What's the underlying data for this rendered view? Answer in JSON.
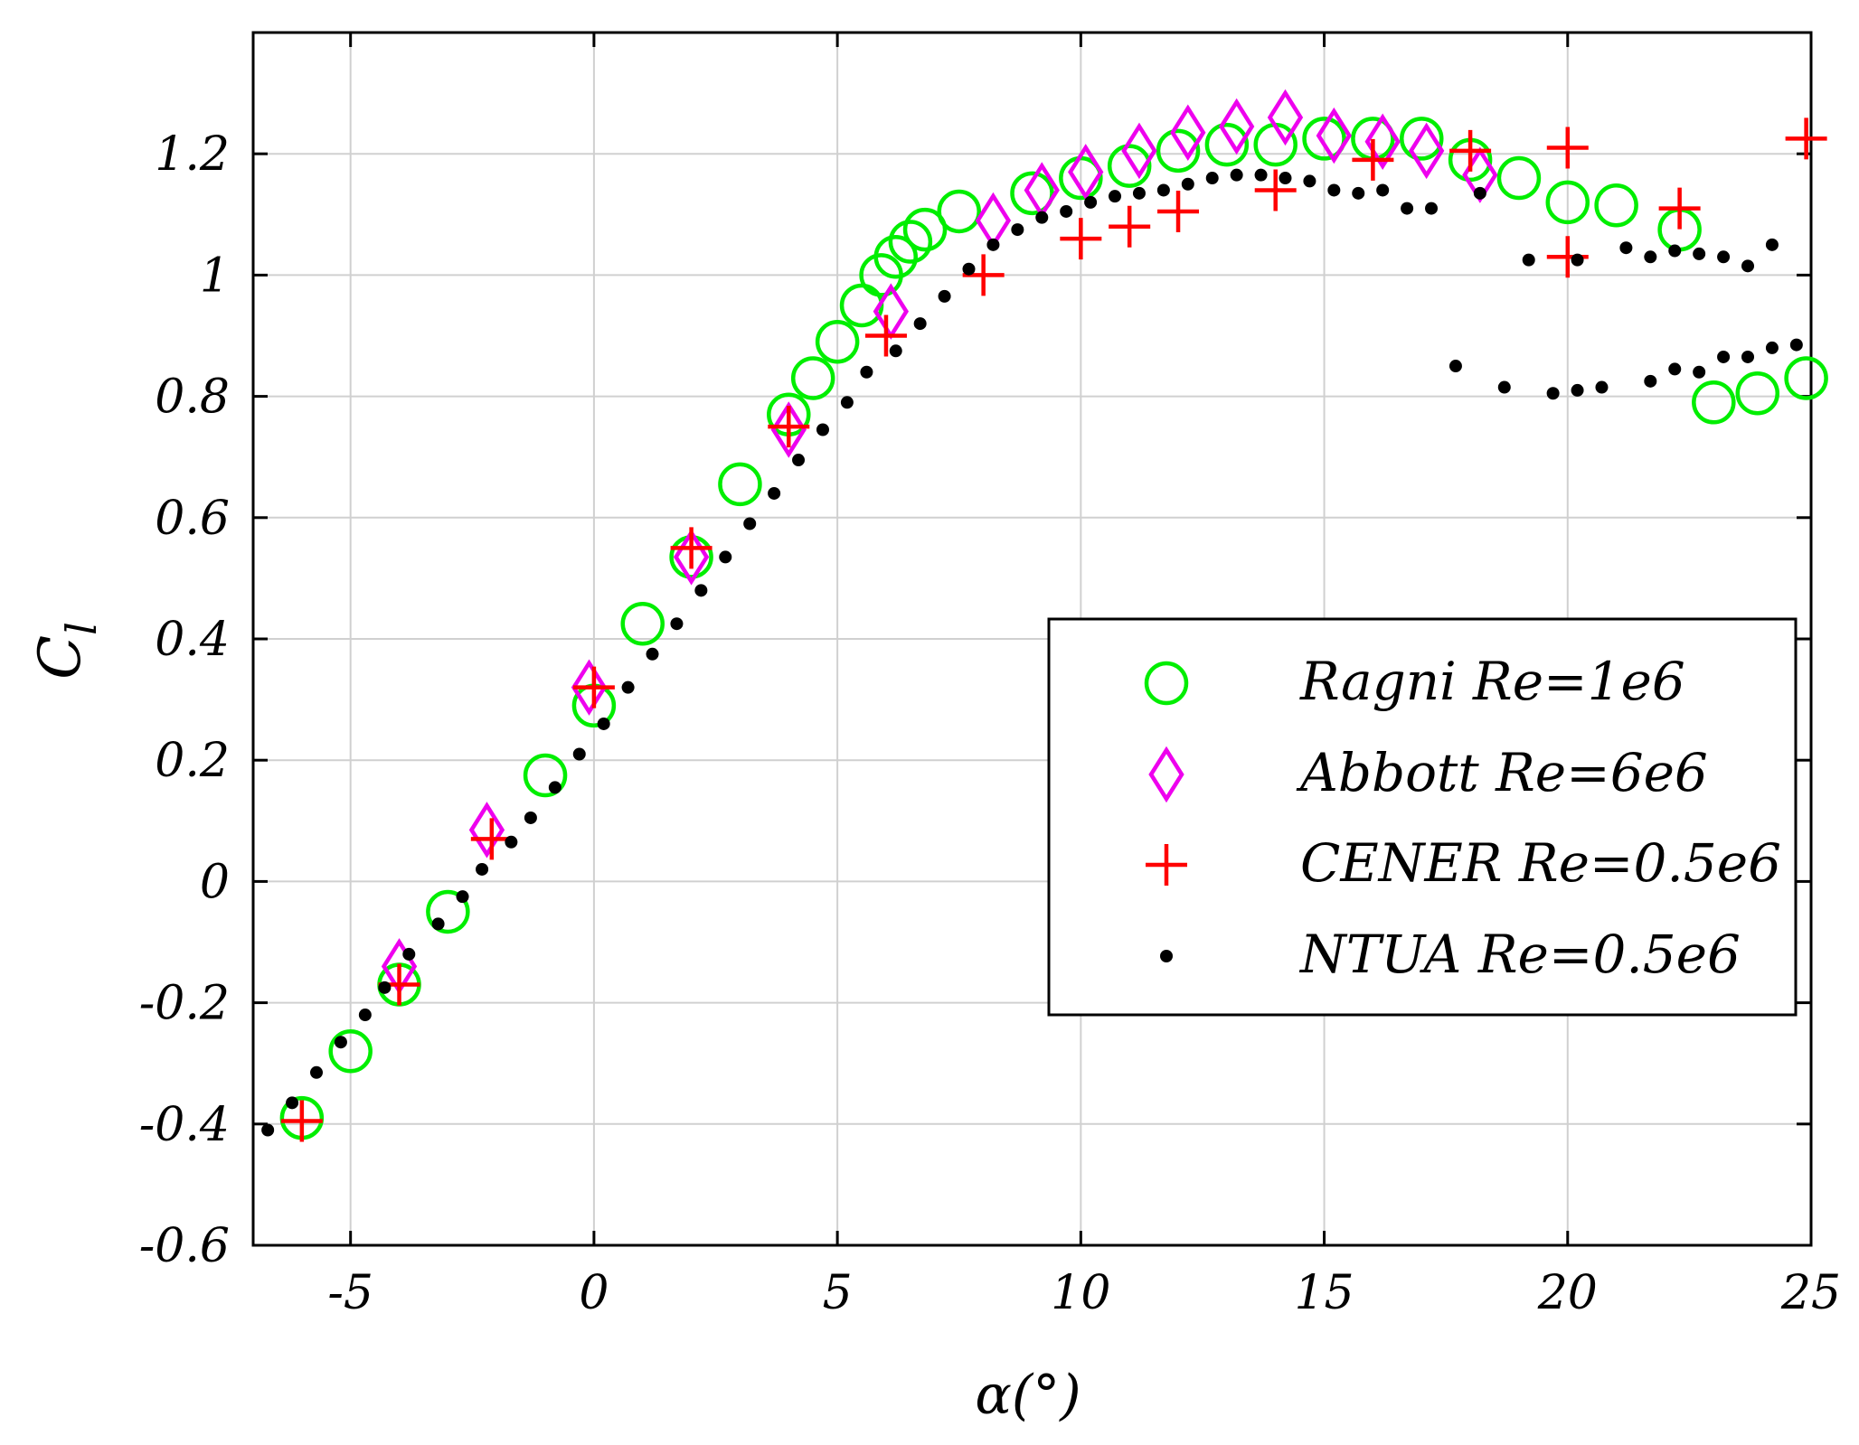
{
  "chart_data": {
    "type": "scatter",
    "xlabel": "α(°)",
    "ylabel_main": "C",
    "ylabel_sub": "l",
    "xlim": [
      -7,
      25
    ],
    "ylim": [
      -0.6,
      1.4
    ],
    "xticks": [
      -5,
      0,
      5,
      10,
      15,
      20,
      25
    ],
    "yticks": [
      -0.6,
      -0.4,
      -0.2,
      0,
      0.2,
      0.4,
      0.6,
      0.8,
      1,
      1.2
    ],
    "xtick_labels": [
      "-5",
      "0",
      "5",
      "10",
      "15",
      "20",
      "25"
    ],
    "ytick_labels": [
      "-0.6",
      "-0.4",
      "-0.2",
      "0",
      "0.2",
      "0.4",
      "0.6",
      "0.8",
      "1",
      "1.2"
    ],
    "grid": true,
    "legend_position": "center-right",
    "colors": {
      "ragni": "#00ee00",
      "abbott": "#ee00ee",
      "cener": "#ff0000",
      "ntua": "#000000",
      "grid": "#d0d0d0",
      "axis": "#000000"
    },
    "series": [
      {
        "name": "Ragni Re=1e6",
        "marker": "circle",
        "points": [
          [
            -6,
            -0.39
          ],
          [
            -5,
            -0.28
          ],
          [
            -4,
            -0.17
          ],
          [
            -3,
            -0.05
          ],
          [
            -1,
            0.175
          ],
          [
            0,
            0.29
          ],
          [
            1,
            0.425
          ],
          [
            2,
            0.535
          ],
          [
            3,
            0.655
          ],
          [
            4,
            0.77
          ],
          [
            4.5,
            0.83
          ],
          [
            5,
            0.89
          ],
          [
            5.5,
            0.95
          ],
          [
            5.9,
            1.0
          ],
          [
            6.2,
            1.03
          ],
          [
            6.5,
            1.055
          ],
          [
            6.8,
            1.075
          ],
          [
            7.5,
            1.105
          ],
          [
            9,
            1.135
          ],
          [
            10,
            1.16
          ],
          [
            11,
            1.18
          ],
          [
            12,
            1.205
          ],
          [
            13,
            1.215
          ],
          [
            14,
            1.215
          ],
          [
            15,
            1.225
          ],
          [
            16,
            1.225
          ],
          [
            17,
            1.225
          ],
          [
            18,
            1.19
          ],
          [
            19,
            1.16
          ],
          [
            20,
            1.12
          ],
          [
            21,
            1.115
          ],
          [
            22.3,
            1.075
          ],
          [
            23,
            0.79
          ],
          [
            23.9,
            0.805
          ],
          [
            24.9,
            0.83
          ]
        ]
      },
      {
        "name": "Abbott Re=6e6",
        "marker": "diamond",
        "points": [
          [
            -4,
            -0.14
          ],
          [
            -2.2,
            0.085
          ],
          [
            -0.1,
            0.32
          ],
          [
            2,
            0.535
          ],
          [
            4,
            0.745
          ],
          [
            6.1,
            0.94
          ],
          [
            8.2,
            1.09
          ],
          [
            9.2,
            1.14
          ],
          [
            10.1,
            1.17
          ],
          [
            11.2,
            1.205
          ],
          [
            12.2,
            1.235
          ],
          [
            13.2,
            1.245
          ],
          [
            14.2,
            1.26
          ],
          [
            15.2,
            1.23
          ],
          [
            16.2,
            1.22
          ],
          [
            17.1,
            1.205
          ],
          [
            18.2,
            1.165
          ]
        ]
      },
      {
        "name": "CENER Re=0.5e6",
        "marker": "plus",
        "points": [
          [
            -6,
            -0.395
          ],
          [
            -4,
            -0.17
          ],
          [
            -2.1,
            0.07
          ],
          [
            0,
            0.32
          ],
          [
            2,
            0.55
          ],
          [
            4,
            0.75
          ],
          [
            6,
            0.9
          ],
          [
            8,
            1.0
          ],
          [
            10,
            1.06
          ],
          [
            11,
            1.08
          ],
          [
            12,
            1.105
          ],
          [
            14,
            1.14
          ],
          [
            16,
            1.19
          ],
          [
            18,
            1.205
          ],
          [
            20,
            1.21
          ],
          [
            20,
            1.03
          ],
          [
            22.3,
            1.11
          ],
          [
            24.9,
            1.225
          ]
        ]
      },
      {
        "name": "NTUA Re=0.5e6",
        "marker": "dot",
        "points": [
          [
            -6.7,
            -0.41
          ],
          [
            -6.2,
            -0.365
          ],
          [
            -5.7,
            -0.315
          ],
          [
            -5.2,
            -0.265
          ],
          [
            -4.7,
            -0.22
          ],
          [
            -4.3,
            -0.175
          ],
          [
            -3.8,
            -0.12
          ],
          [
            -3.2,
            -0.07
          ],
          [
            -2.7,
            -0.025
          ],
          [
            -2.3,
            0.02
          ],
          [
            -1.7,
            0.065
          ],
          [
            -1.3,
            0.105
          ],
          [
            -0.8,
            0.155
          ],
          [
            -0.3,
            0.21
          ],
          [
            0.2,
            0.26
          ],
          [
            0.7,
            0.32
          ],
          [
            1.2,
            0.375
          ],
          [
            1.7,
            0.425
          ],
          [
            2.2,
            0.48
          ],
          [
            2.7,
            0.535
          ],
          [
            3.2,
            0.59
          ],
          [
            3.7,
            0.64
          ],
          [
            4.2,
            0.695
          ],
          [
            4.7,
            0.745
          ],
          [
            5.2,
            0.79
          ],
          [
            5.6,
            0.84
          ],
          [
            6.2,
            0.875
          ],
          [
            6.7,
            0.92
          ],
          [
            7.2,
            0.965
          ],
          [
            7.7,
            1.01
          ],
          [
            8.2,
            1.05
          ],
          [
            8.7,
            1.075
          ],
          [
            9.2,
            1.095
          ],
          [
            9.7,
            1.105
          ],
          [
            10.2,
            1.12
          ],
          [
            10.7,
            1.13
          ],
          [
            11.2,
            1.135
          ],
          [
            11.7,
            1.14
          ],
          [
            12.2,
            1.15
          ],
          [
            12.7,
            1.16
          ],
          [
            13.2,
            1.165
          ],
          [
            13.7,
            1.165
          ],
          [
            14.2,
            1.16
          ],
          [
            14.7,
            1.155
          ],
          [
            15.2,
            1.14
          ],
          [
            15.7,
            1.135
          ],
          [
            16.2,
            1.14
          ],
          [
            16.7,
            1.11
          ],
          [
            17.2,
            1.11
          ],
          [
            18.2,
            1.135
          ],
          [
            19.2,
            1.025
          ],
          [
            20.2,
            1.025
          ],
          [
            21.2,
            1.045
          ],
          [
            21.7,
            1.03
          ],
          [
            22.2,
            1.04
          ],
          [
            22.7,
            1.035
          ],
          [
            23.2,
            1.03
          ],
          [
            23.7,
            1.015
          ],
          [
            24.2,
            1.05
          ],
          [
            17.7,
            0.85
          ],
          [
            18.7,
            0.815
          ],
          [
            19.7,
            0.805
          ],
          [
            20.2,
            0.81
          ],
          [
            20.7,
            0.815
          ],
          [
            21.7,
            0.825
          ],
          [
            22.2,
            0.845
          ],
          [
            22.7,
            0.84
          ],
          [
            23.2,
            0.865
          ],
          [
            23.7,
            0.865
          ],
          [
            24.2,
            0.88
          ],
          [
            24.7,
            0.885
          ]
        ]
      }
    ]
  }
}
